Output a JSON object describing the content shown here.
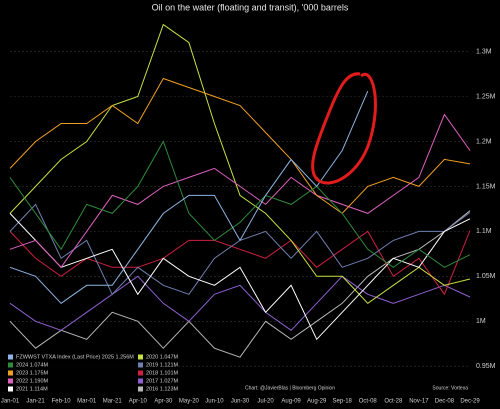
{
  "chart_data": {
    "type": "line",
    "title": "Oil on the water (floating and transit), '000 barrels",
    "categories": [
      "Jan-01",
      "Jan-21",
      "Feb-10",
      "Mar-01",
      "Mar-21",
      "Apr-10",
      "Apr-30",
      "May-20",
      "Jun-10",
      "Jun-30",
      "Jul-20",
      "Aug-09",
      "Aug-29",
      "Sep-18",
      "Oct-08",
      "Oct-28",
      "Nov-17",
      "Dec-08",
      "Dec-29"
    ],
    "ylim": [
      0.928,
      1.344
    ],
    "yticks": [
      {
        "value": 0.95,
        "label": "0.95M"
      },
      {
        "value": 1,
        "label": "1M"
      },
      {
        "value": 1.05,
        "label": "1.05M"
      },
      {
        "value": 1.1,
        "label": "1.1M"
      },
      {
        "value": 1.15,
        "label": "1.15M"
      },
      {
        "value": 1.2,
        "label": "1.2M"
      },
      {
        "value": 1.25,
        "label": "1.25M"
      },
      {
        "value": 1.3,
        "label": "1.3M"
      }
    ],
    "grid": true,
    "series": [
      {
        "name": "FZWWST VTXA Index (Last Price) 2025 1.256M",
        "color": "#8db4e2",
        "values": [
          1.06,
          1.05,
          1.02,
          1.04,
          1.04,
          1.08,
          1.12,
          1.14,
          1.14,
          1.09,
          1.14,
          1.18,
          1.15,
          1.19,
          1.256,
          null,
          null,
          null,
          null
        ]
      },
      {
        "name": "2024 1.074M",
        "color": "#2e8b3a",
        "values": [
          1.16,
          1.12,
          1.08,
          1.13,
          1.12,
          1.15,
          1.2,
          1.12,
          1.09,
          1.11,
          1.14,
          1.13,
          1.15,
          1.12,
          1.08,
          1.06,
          1.08,
          1.06,
          1.074
        ]
      },
      {
        "name": "2023 1.175M",
        "color": "#f0a020",
        "values": [
          1.17,
          1.2,
          1.22,
          1.22,
          1.24,
          1.22,
          1.27,
          1.26,
          1.25,
          1.24,
          1.21,
          1.18,
          1.14,
          1.12,
          1.15,
          1.16,
          1.15,
          1.18,
          1.175
        ]
      },
      {
        "name": "2022 1.190M",
        "color": "#e060c0",
        "values": [
          1.08,
          1.09,
          1.06,
          1.1,
          1.14,
          1.13,
          1.15,
          1.16,
          1.17,
          1.15,
          1.13,
          1.16,
          1.14,
          1.13,
          1.12,
          1.14,
          1.16,
          1.23,
          1.19
        ]
      },
      {
        "name": "2021 1.114M",
        "color": "#ffffff",
        "values": [
          1.12,
          1.09,
          1.06,
          1.07,
          1.08,
          1.03,
          1.07,
          1.05,
          1.04,
          1.06,
          1.01,
          1.04,
          0.98,
          1.01,
          1.04,
          1.07,
          1.06,
          1.1,
          1.114
        ]
      },
      {
        "name": "2020 1.047M",
        "color": "#c8e040",
        "values": [
          1.12,
          1.15,
          1.18,
          1.2,
          1.24,
          1.25,
          1.33,
          1.31,
          1.22,
          1.14,
          1.12,
          1.09,
          1.05,
          1.05,
          1.02,
          1.04,
          1.06,
          1.04,
          1.047
        ]
      },
      {
        "name": "2019 1.121M",
        "color": "#7080b0",
        "values": [
          1.1,
          1.13,
          1.07,
          1.09,
          1.03,
          1.06,
          1.04,
          1.03,
          1.07,
          1.09,
          1.1,
          1.07,
          1.1,
          1.06,
          1.07,
          1.09,
          1.1,
          1.1,
          1.121
        ]
      },
      {
        "name": "2018 1.101M",
        "color": "#d02040",
        "values": [
          1.1,
          1.07,
          1.05,
          1.07,
          1.06,
          1.06,
          1.07,
          1.09,
          1.09,
          1.08,
          1.07,
          1.09,
          1.06,
          1.08,
          1.1,
          1.05,
          1.07,
          1.03,
          1.101
        ]
      },
      {
        "name": "2017 1.027M",
        "color": "#9060d0",
        "values": [
          1.02,
          1.0,
          0.99,
          1.01,
          1.03,
          1.05,
          1.02,
          1.0,
          1.03,
          1.04,
          1.01,
          0.99,
          1.02,
          1.05,
          1.03,
          1.02,
          1.03,
          1.04,
          1.027
        ]
      },
      {
        "name": "2016 1.123M",
        "color": "#b8b8b8",
        "values": [
          1.0,
          0.97,
          0.99,
          0.98,
          1.01,
          1.0,
          0.97,
          1.0,
          0.97,
          0.96,
          1.0,
          0.98,
          1.0,
          1.02,
          1.05,
          1.07,
          1.08,
          1.1,
          1.123
        ]
      }
    ],
    "source": "Source: Vortexa",
    "credit": "Chart: @JavierBlas | Bloomberg Opinion"
  }
}
